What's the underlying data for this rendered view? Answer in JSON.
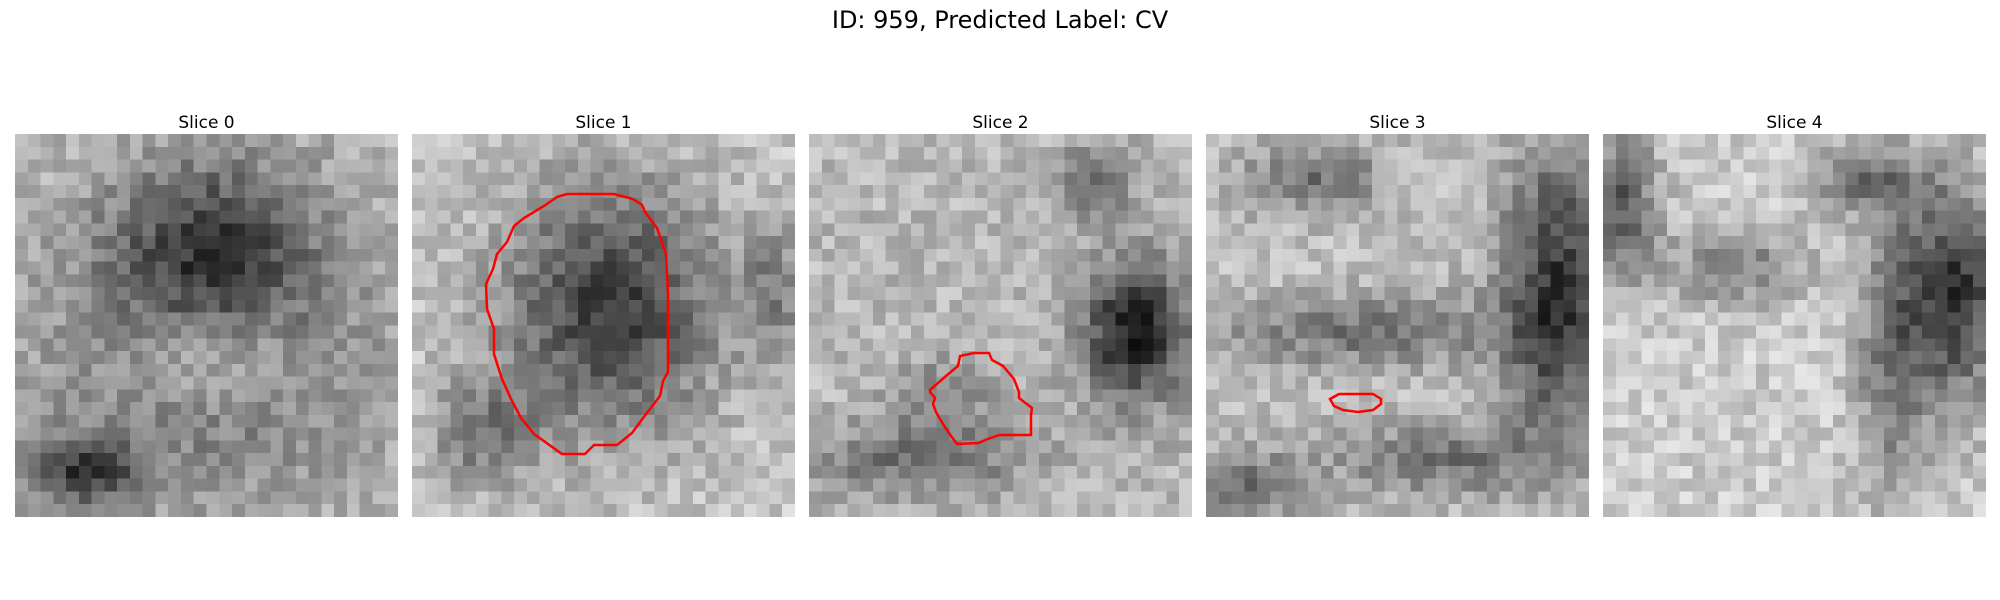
{
  "title": "ID: 959, Predicted Label: CV",
  "slices": [
    {
      "label": "Slice 0",
      "contour": "none"
    },
    {
      "label": "Slice 1",
      "contour": "large-region"
    },
    {
      "label": "Slice 2",
      "contour": "small-region"
    },
    {
      "label": "Slice 3",
      "contour": "thin-region"
    },
    {
      "label": "Slice 4",
      "contour": "none"
    }
  ],
  "colors": {
    "contour": "#ff0000",
    "background": "#ffffff"
  }
}
